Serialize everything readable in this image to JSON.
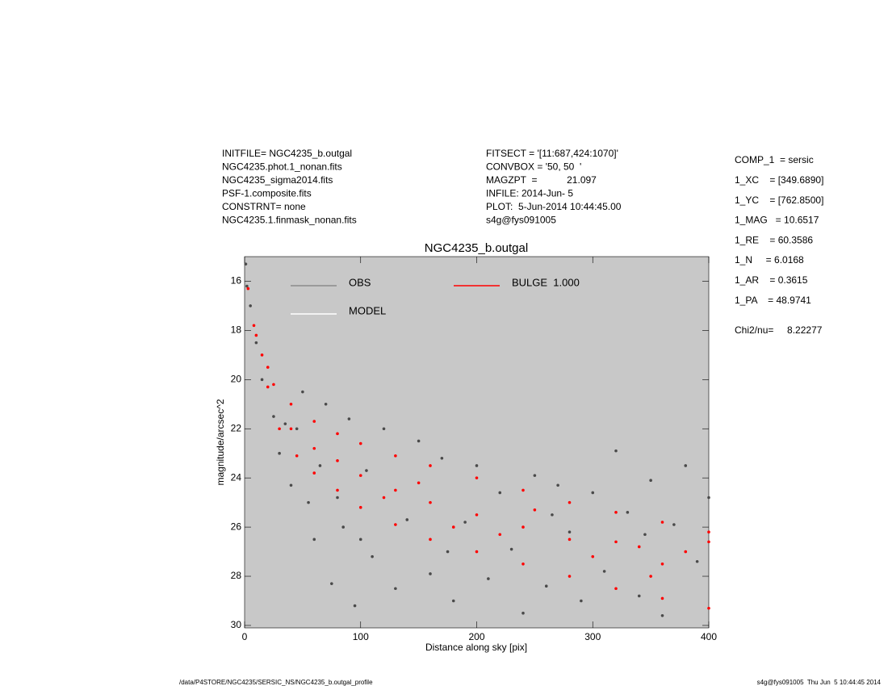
{
  "chart_data": {
    "type": "scatter",
    "title": "NGC4235_b.outgal",
    "x_label": "Distance along sky [pix]",
    "y_label": "magnitude/arcsec^2",
    "xlim": [
      0,
      400
    ],
    "xticks": [
      0,
      100,
      200,
      300,
      400
    ],
    "ylim": [
      15,
      30.1
    ],
    "yticks": [
      16,
      18,
      20,
      22,
      24,
      26,
      28,
      30
    ],
    "y_inverted": true,
    "plot_background": "#c8c8c8",
    "header_left": [
      "INITFILE= NGC4235_b.outgal",
      "NGC4235.phot.1_nonan.fits",
      "NGC4235_sigma2014.fits",
      "PSF-1.composite.fits",
      "CONSTRNT= none",
      "NGC4235.1.finmask_nonan.fits"
    ],
    "header_middle": [
      "FITSECT = '[11:687,424:1070]'",
      "CONVBOX = '50, 50  '",
      "MAGZPT  =           21.097",
      "INFILE: 2014-Jun- 5",
      "PLOT:  5-Jun-2014 10:44:45.00",
      "s4g@fys091005"
    ],
    "components": [
      "COMP_1  = sersic",
      "1_XC    = [349.6890]",
      "1_YC    = [762.8500]",
      "1_MAG   = 10.6517",
      "1_RE    = 60.3586",
      "1_N     = 6.0168",
      "1_AR    = 0.3615",
      "1_PA    = 48.9741"
    ],
    "chi2": "Chi2/nu=     8.22277",
    "footer_left": "/data/P4STORE/NGC4235/SERSIC_NS/NGC4235_b.outgal_profile",
    "footer_right": "s4g@fys091005  Thu Jun  5 10:44:45 2014",
    "series": [
      {
        "name": "OBS",
        "color": "#4a4a4a",
        "legend_color": "#8a8a8a",
        "x": [
          1,
          2,
          5,
          10,
          15,
          25,
          30,
          40,
          45,
          50,
          55,
          60,
          70,
          75,
          80,
          90,
          95,
          100,
          110,
          120,
          130,
          140,
          150,
          160,
          170,
          180,
          190,
          200,
          210,
          220,
          230,
          240,
          250,
          260,
          270,
          280,
          290,
          300,
          310,
          320,
          330,
          340,
          350,
          360,
          370,
          380,
          390,
          400,
          65,
          35,
          85,
          105,
          175,
          265,
          345
        ],
        "values": [
          15.3,
          16.2,
          17,
          18.5,
          20,
          21.5,
          23,
          24.3,
          22,
          20.5,
          25,
          26.5,
          21,
          28.3,
          24.8,
          21.6,
          29.2,
          26.5,
          27.2,
          22,
          28.5,
          25.7,
          22.5,
          27.9,
          23.2,
          29,
          25.8,
          23.5,
          28.1,
          24.6,
          26.9,
          29.5,
          23.9,
          28.4,
          24.3,
          26.2,
          29,
          24.6,
          27.8,
          22.9,
          25.4,
          28.8,
          24.1,
          29.6,
          25.9,
          23.5,
          27.4,
          24.8,
          23.5,
          21.8,
          26,
          23.7,
          27,
          25.5,
          26.3
        ]
      },
      {
        "name": "MODEL",
        "color": "#ffffff",
        "legend_color": "#ffffff",
        "x": [],
        "values": []
      },
      {
        "name": "BULGE  1.000",
        "color": "#ff0000",
        "legend_color": "#ff0000",
        "x": [
          3,
          8,
          15,
          25,
          40,
          60,
          80,
          100,
          130,
          160,
          200,
          240,
          280,
          320,
          360,
          400,
          10,
          20,
          30,
          45,
          60,
          80,
          100,
          130,
          160,
          200,
          240,
          280,
          320,
          360,
          400,
          20,
          40,
          60,
          80,
          100,
          130,
          160,
          200,
          240,
          280,
          320,
          360,
          340,
          380,
          400,
          150,
          250,
          300,
          350,
          120,
          180,
          220
        ],
        "values": [
          16.3,
          17.8,
          19,
          20.2,
          21,
          21.7,
          22.2,
          22.6,
          23.1,
          23.5,
          24,
          24.5,
          25,
          25.4,
          25.8,
          26.2,
          18.2,
          20.3,
          22,
          23.1,
          23.8,
          24.5,
          25.2,
          25.9,
          26.5,
          27,
          27.5,
          28,
          28.5,
          28.9,
          29.3,
          19.5,
          22,
          22.8,
          23.3,
          23.9,
          24.5,
          25,
          25.5,
          26,
          26.5,
          26.6,
          27.5,
          26.8,
          27,
          26.6,
          24.2,
          25.3,
          27.2,
          28,
          24.8,
          26,
          26.3
        ]
      }
    ]
  }
}
